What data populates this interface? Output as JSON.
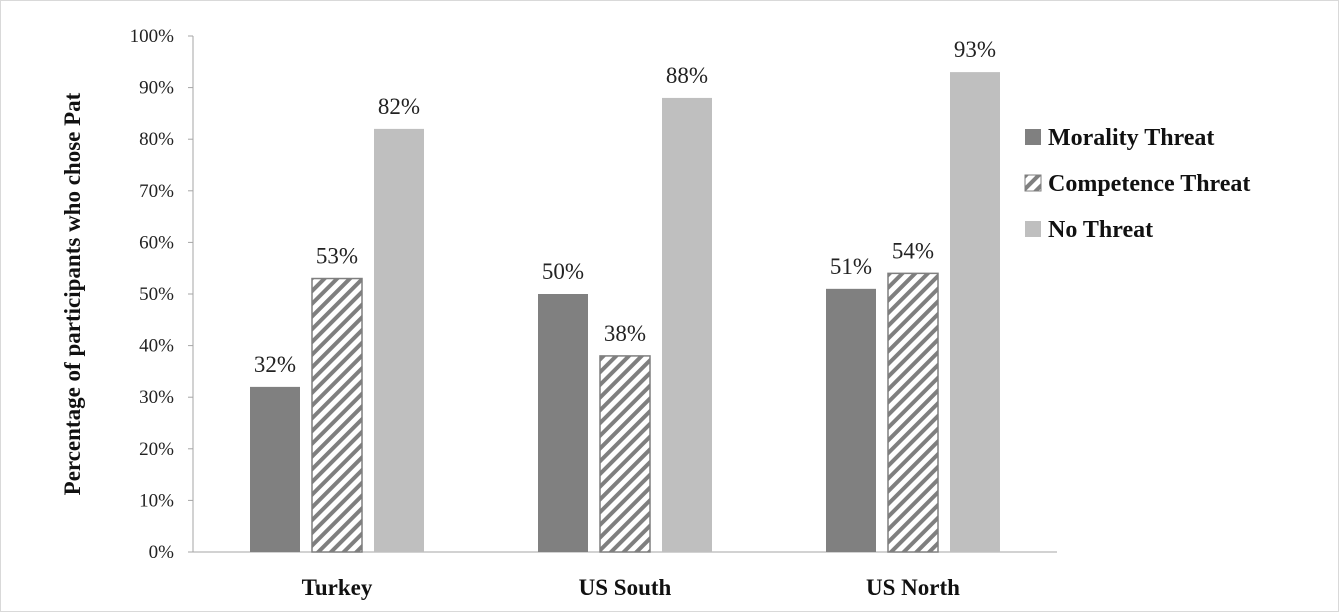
{
  "chart_data": {
    "type": "bar",
    "title": "",
    "xlabel": "",
    "ylabel": "Percentage of participants who chose Pat",
    "ylim": [
      0,
      100
    ],
    "yticks": [
      "0%",
      "10%",
      "20%",
      "30%",
      "40%",
      "50%",
      "60%",
      "70%",
      "80%",
      "90%",
      "100%"
    ],
    "categories": [
      "Turkey",
      "US South",
      "US North"
    ],
    "series": [
      {
        "name": "Morality Threat",
        "values": [
          32,
          50,
          51
        ],
        "labels": [
          "32%",
          "50%",
          "51%"
        ],
        "color": "#808080",
        "pattern": "solid"
      },
      {
        "name": "Competence Threat",
        "values": [
          53,
          38,
          54
        ],
        "labels": [
          "53%",
          "38%",
          "54%"
        ],
        "color": "#7f7f7f",
        "pattern": "diagonal-stripes"
      },
      {
        "name": "No Threat",
        "values": [
          82,
          88,
          93
        ],
        "labels": [
          "82%",
          "88%",
          "93%"
        ],
        "color": "#bfbfbf",
        "pattern": "solid"
      }
    ],
    "legend_position": "right",
    "grid": false
  }
}
